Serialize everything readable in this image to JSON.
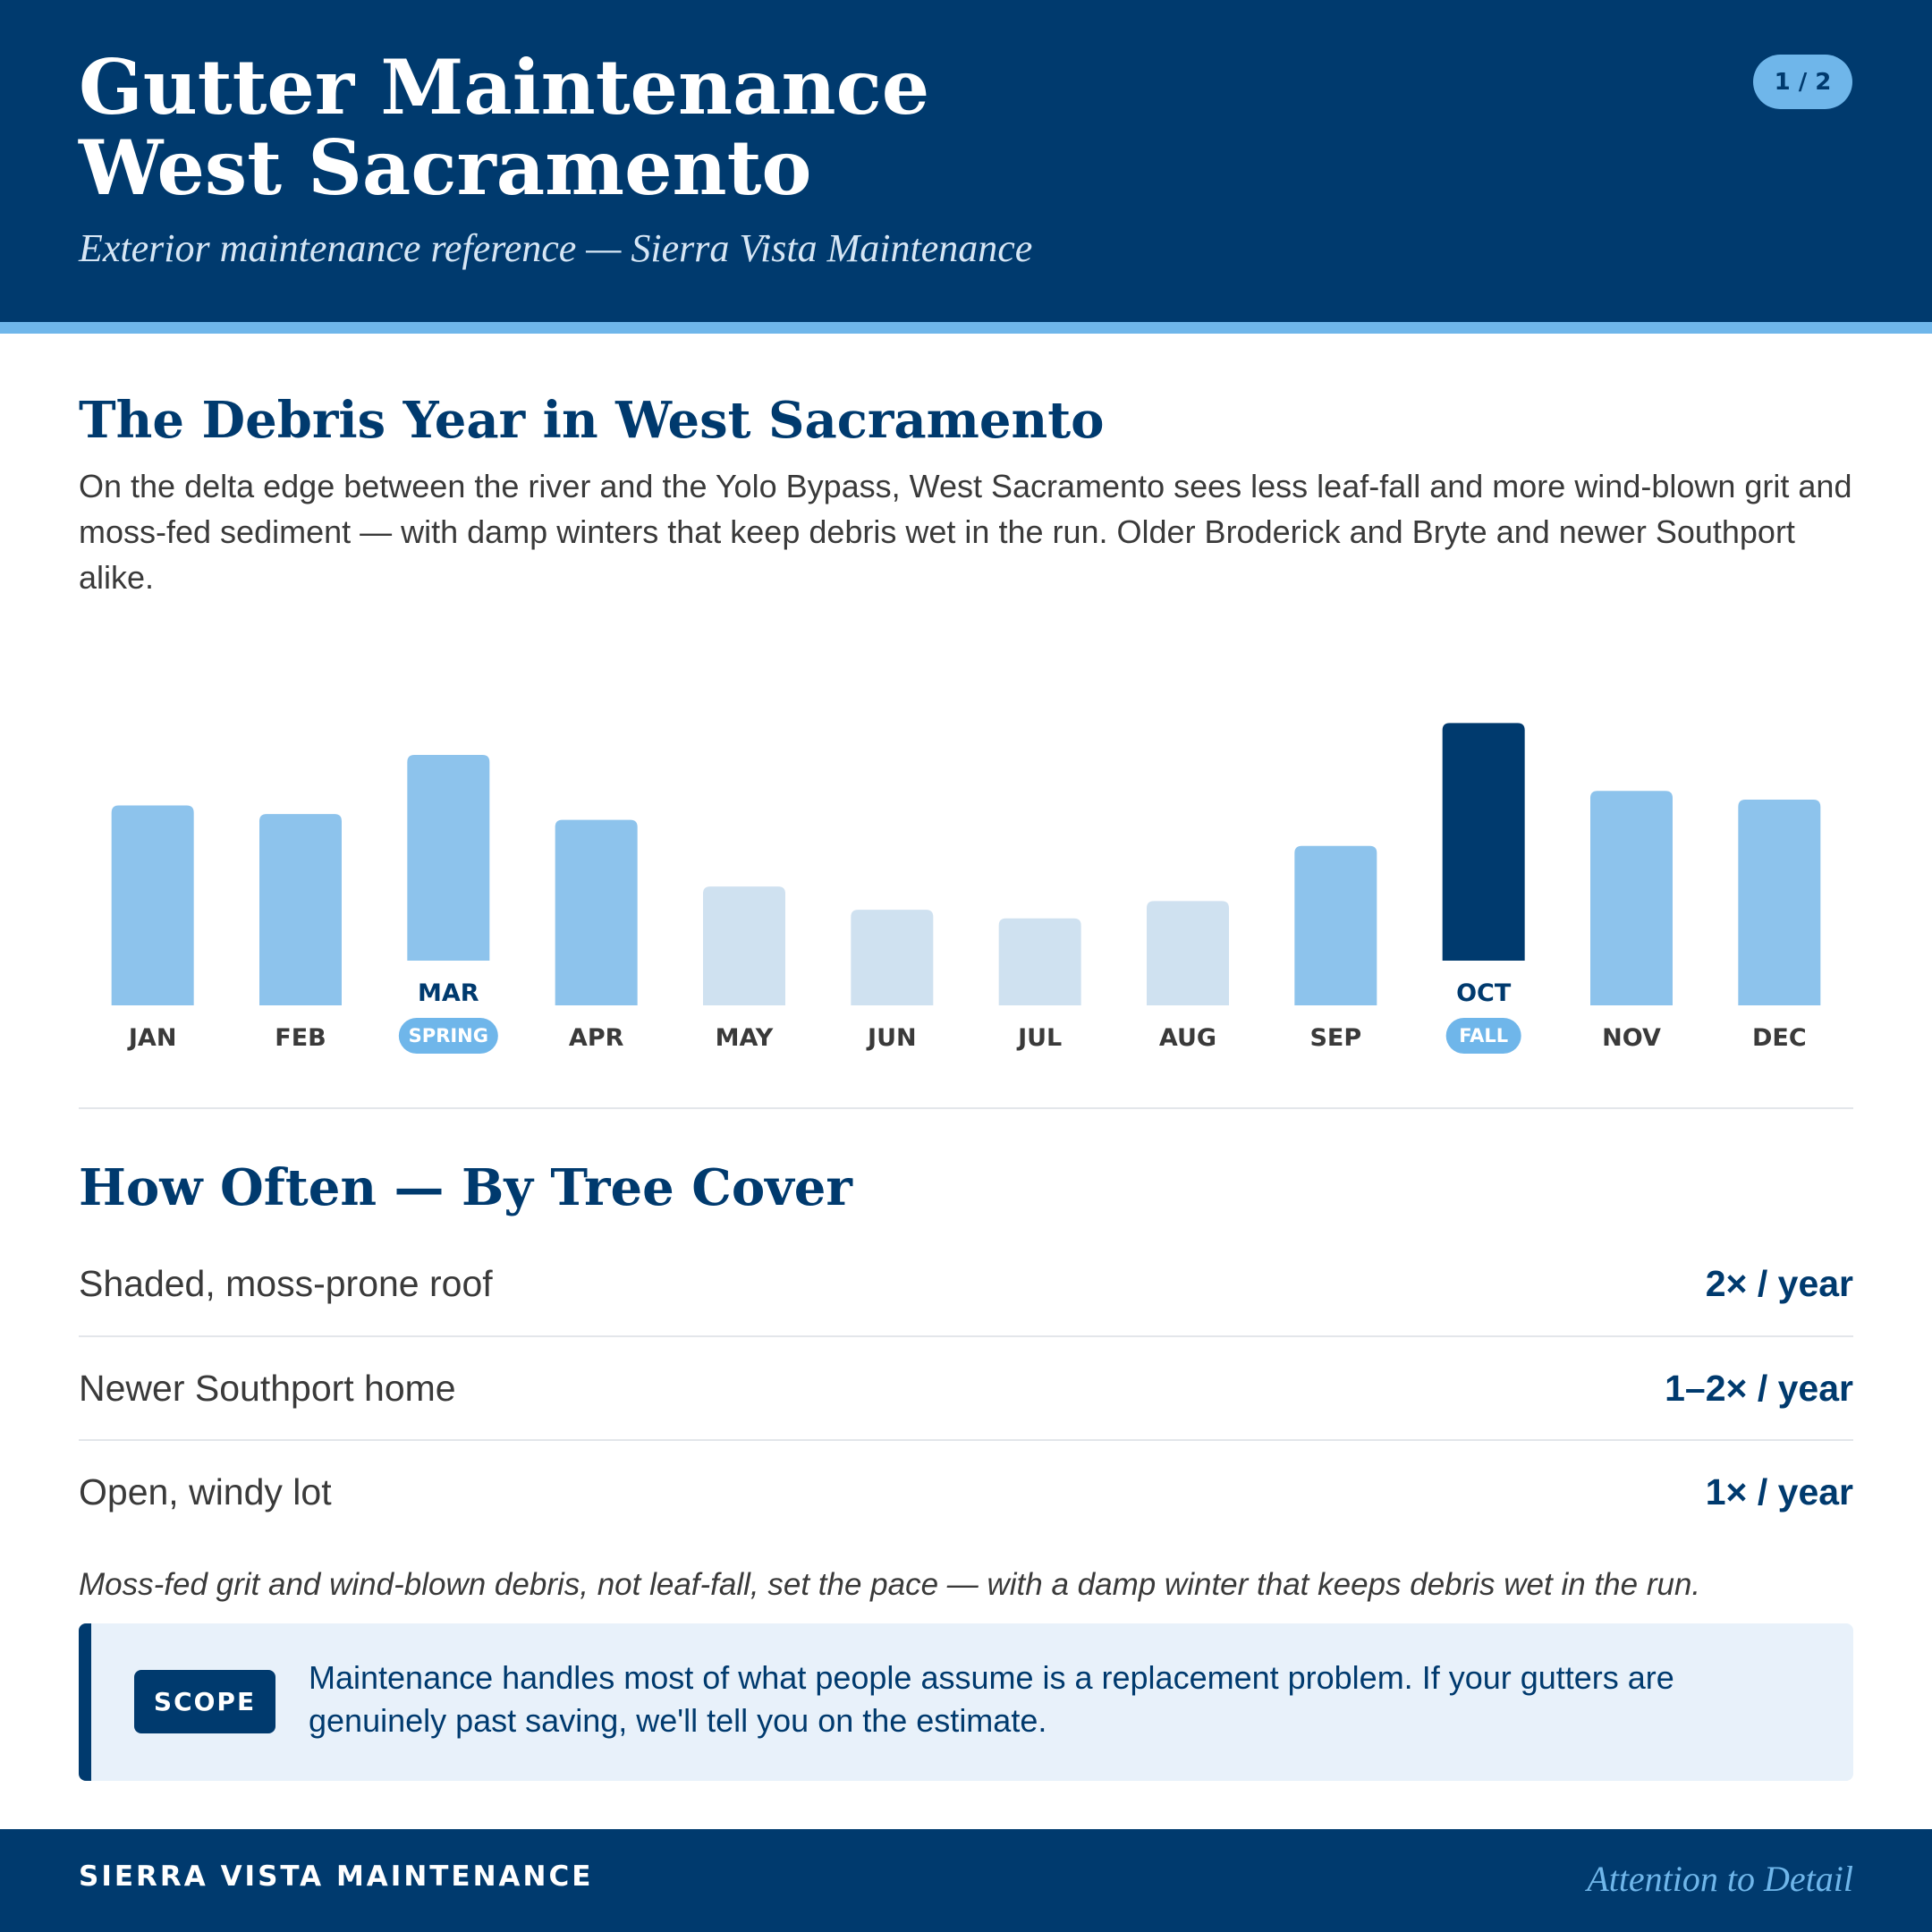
{
  "header": {
    "title_line1": "Gutter Maintenance",
    "title_line2": "West Sacramento",
    "subtitle": "Exterior maintenance reference — Sierra Vista Maintenance",
    "page_indicator": "1 / 2"
  },
  "debris_section": {
    "heading": "The Debris Year in West Sacramento",
    "intro": "On the delta edge between the river and the Yolo Bypass, West Sacramento sees less leaf-fall and more wind-blown grit and moss-fed sediment — with damp winters that keep debris wet in the run. Older Broderick and Bryte and newer Southport alike."
  },
  "chart_data": {
    "type": "bar",
    "categories": [
      "JAN",
      "FEB",
      "MAR",
      "APR",
      "MAY",
      "JUN",
      "JUL",
      "AUG",
      "SEP",
      "OCT",
      "NOV",
      "DEC"
    ],
    "values": [
      69,
      66,
      71,
      64,
      41,
      33,
      30,
      36,
      55,
      82,
      74,
      71
    ],
    "levels": [
      "mid",
      "mid",
      "mid",
      "mid",
      "low",
      "low",
      "low",
      "low",
      "mid",
      "peak",
      "mid",
      "mid"
    ],
    "badges": [
      {
        "month": "MAR",
        "label": "SPRING"
      },
      {
        "month": "OCT",
        "label": "FALL"
      }
    ],
    "highlighted_months": [
      "MAR",
      "OCT"
    ],
    "ylim": [
      0,
      100
    ],
    "grid": false,
    "colors": {
      "low": "#cfe1f0",
      "mid": "#8dc3ec",
      "peak": "#003a6e",
      "badge": "#6fb6ea"
    }
  },
  "frequency_section": {
    "heading": "How Often — By Tree Cover",
    "rows": [
      {
        "label": "Shaded, moss-prone roof",
        "value": "2× / year"
      },
      {
        "label": "Newer Southport home",
        "value": "1–2× / year"
      },
      {
        "label": "Open, windy lot",
        "value": "1× / year"
      }
    ],
    "note": "Moss-fed grit and wind-blown debris, not leaf-fall, set the pace — with a damp winter that keeps debris wet in the run."
  },
  "scope": {
    "tag": "SCOPE",
    "text": "Maintenance handles most of what people assume is a replacement problem. If your gutters are genuinely past saving, we'll tell you on the estimate."
  },
  "footer": {
    "brand": "SIERRA VISTA MAINTENANCE",
    "tagline": "Attention to Detail"
  },
  "colors": {
    "navy": "#003a6e",
    "accent": "#6fb6ea",
    "text": "#3a3a3a",
    "callout_bg": "#e8f1fa"
  }
}
